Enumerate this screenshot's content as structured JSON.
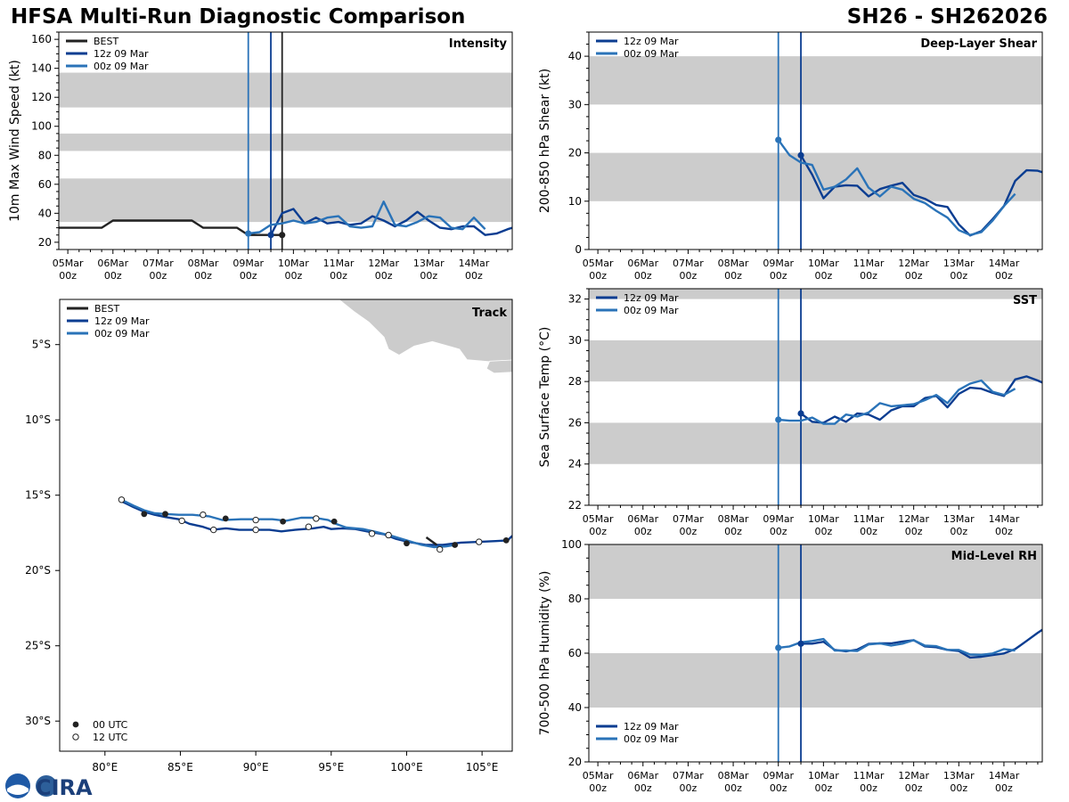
{
  "header": {
    "title_left": "HFSA Multi-Run Diagnostic Comparison",
    "title_right": "SH26 - SH262026"
  },
  "colors": {
    "best": "#222222",
    "run12": "#0b3d91",
    "run00": "#2a73b8",
    "band": "#cccccc",
    "land": "#cccccc"
  },
  "legend": {
    "best": "BEST",
    "run12": "12z 09 Mar",
    "run00": "00z 09 Mar",
    "utc00": "00 UTC",
    "utc12": "12 UTC"
  },
  "time_ticks": [
    "05Mar\n00z",
    "06Mar\n00z",
    "07Mar\n00z",
    "08Mar\n00z",
    "09Mar\n00z",
    "10Mar\n00z",
    "11Mar\n00z",
    "12Mar\n00z",
    "13Mar\n00z",
    "14Mar\n00z"
  ],
  "logo_text": "CIRA",
  "chart_data": [
    {
      "id": "intensity",
      "type": "line",
      "title": "Intensity",
      "ylabel": "10m Max Wind Speed (kt)",
      "xlim_days": [
        -0.2,
        9.85
      ],
      "ylim": [
        15,
        165
      ],
      "yticks": [
        20,
        40,
        60,
        80,
        100,
        120,
        140,
        160
      ],
      "bands": [
        [
          34,
          64
        ],
        [
          83,
          95
        ],
        [
          113,
          137
        ]
      ],
      "vlines": [
        {
          "x": 4.0,
          "color": "run00"
        },
        {
          "x": 4.5,
          "color": "run12"
        },
        {
          "x": 4.75,
          "color": "best"
        }
      ],
      "series": [
        {
          "name": "BEST",
          "color": "best",
          "x": [
            -0.2,
            0.75,
            1.0,
            1.25,
            2.75,
            3.0,
            3.75,
            4.0,
            4.75
          ],
          "y": [
            30,
            30,
            35,
            35,
            35,
            30,
            30,
            25,
            25
          ],
          "end_marker": true
        },
        {
          "name": "12z 09 Mar",
          "color": "run12",
          "x": [
            4.5,
            4.75,
            5.0,
            5.25,
            5.5,
            5.75,
            6.0,
            6.25,
            6.5,
            6.75,
            7.0,
            7.25,
            7.5,
            7.75,
            8.0,
            8.25,
            8.5,
            8.75,
            9.0,
            9.25,
            9.5,
            9.75,
            9.85
          ],
          "y": [
            25,
            40,
            43,
            33,
            37,
            33,
            34,
            32,
            33,
            38,
            35,
            31,
            35,
            41,
            35,
            30,
            29,
            31,
            31,
            25,
            26,
            29,
            30
          ],
          "start_marker": true
        },
        {
          "name": "00z 09 Mar",
          "color": "run00",
          "x": [
            4.0,
            4.25,
            4.5,
            4.75,
            5.0,
            5.25,
            5.5,
            5.75,
            6.0,
            6.25,
            6.5,
            6.75,
            7.0,
            7.25,
            7.5,
            7.75,
            8.0,
            8.25,
            8.5,
            8.75,
            9.0,
            9.25
          ],
          "y": [
            26,
            27,
            32,
            33,
            35,
            33,
            34,
            37,
            38,
            31,
            30,
            31,
            48,
            32,
            31,
            34,
            38,
            37,
            30,
            29,
            37,
            29
          ],
          "start_marker": true
        }
      ]
    },
    {
      "id": "shear",
      "type": "line",
      "title": "Deep-Layer Shear",
      "ylabel": "200-850 hPa Shear (kt)",
      "xlim_days": [
        -0.2,
        9.85
      ],
      "ylim": [
        0,
        45
      ],
      "yticks": [
        0,
        10,
        20,
        30,
        40
      ],
      "bands": [
        [
          10,
          20
        ],
        [
          30,
          40
        ]
      ],
      "vlines": [
        {
          "x": 4.0,
          "color": "run00"
        },
        {
          "x": 4.5,
          "color": "run12"
        }
      ],
      "series": [
        {
          "name": "12z 09 Mar",
          "color": "run12",
          "x": [
            4.5,
            4.75,
            5.0,
            5.25,
            5.5,
            5.75,
            6.0,
            6.25,
            6.5,
            6.75,
            7.0,
            7.25,
            7.5,
            7.75,
            8.0,
            8.25,
            8.5,
            8.75,
            9.0,
            9.25,
            9.5,
            9.75,
            9.85
          ],
          "y": [
            19.5,
            15.5,
            10.6,
            13.0,
            13.3,
            13.2,
            11.0,
            12.5,
            13.2,
            13.8,
            11.3,
            10.5,
            9.2,
            8.8,
            5.2,
            2.9,
            3.8,
            6.3,
            9.0,
            14.2,
            16.4,
            16.3,
            16.0
          ],
          "start_marker": true
        },
        {
          "name": "00z 09 Mar",
          "color": "run00",
          "x": [
            4.0,
            4.25,
            4.5,
            4.75,
            5.0,
            5.25,
            5.5,
            5.75,
            6.0,
            6.25,
            6.5,
            6.75,
            7.0,
            7.25,
            7.5,
            7.75,
            8.0,
            8.25,
            8.5,
            8.75,
            9.0,
            9.25
          ],
          "y": [
            22.7,
            19.5,
            18.0,
            17.5,
            12.4,
            13.0,
            14.5,
            16.8,
            12.8,
            11.0,
            13.0,
            12.4,
            10.5,
            9.6,
            8.0,
            6.6,
            4.0,
            3.0,
            3.6,
            6.0,
            9.0,
            11.5
          ],
          "start_marker": true
        }
      ]
    },
    {
      "id": "sst",
      "type": "line",
      "title": "SST",
      "ylabel": "Sea Surface Temp (°C)",
      "xlim_days": [
        -0.2,
        9.85
      ],
      "ylim": [
        22,
        32.5
      ],
      "yticks": [
        22,
        24,
        26,
        28,
        30,
        32
      ],
      "bands": [
        [
          24,
          26
        ],
        [
          28,
          30
        ],
        [
          32,
          32.5
        ]
      ],
      "vlines": [
        {
          "x": 4.0,
          "color": "run00"
        },
        {
          "x": 4.5,
          "color": "run12"
        }
      ],
      "series": [
        {
          "name": "12z 09 Mar",
          "color": "run12",
          "x": [
            4.5,
            4.75,
            5.0,
            5.25,
            5.5,
            5.75,
            6.0,
            6.25,
            6.5,
            6.75,
            7.0,
            7.25,
            7.5,
            7.75,
            8.0,
            8.25,
            8.5,
            8.75,
            9.0,
            9.25,
            9.5,
            9.75,
            9.85
          ],
          "y": [
            26.45,
            26.05,
            26.0,
            26.3,
            26.05,
            26.45,
            26.4,
            26.15,
            26.6,
            26.8,
            26.8,
            27.2,
            27.3,
            26.75,
            27.4,
            27.7,
            27.65,
            27.45,
            27.3,
            28.1,
            28.25,
            28.05,
            27.95
          ],
          "start_marker": true
        },
        {
          "name": "00z 09 Mar",
          "color": "run00",
          "x": [
            4.0,
            4.25,
            4.5,
            4.75,
            5.0,
            5.25,
            5.5,
            5.75,
            6.0,
            6.25,
            6.5,
            6.75,
            7.0,
            7.25,
            7.5,
            7.75,
            8.0,
            8.25,
            8.5,
            8.75,
            9.0,
            9.25
          ],
          "y": [
            26.15,
            26.1,
            26.1,
            26.25,
            25.95,
            25.95,
            26.4,
            26.3,
            26.5,
            26.95,
            26.8,
            26.85,
            26.9,
            27.1,
            27.35,
            26.95,
            27.6,
            27.9,
            28.05,
            27.5,
            27.35,
            27.65
          ],
          "start_marker": true
        }
      ]
    },
    {
      "id": "rh",
      "type": "line",
      "title": "Mid-Level RH",
      "ylabel": "700-500 hPa Humidity (%)",
      "xlim_days": [
        -0.2,
        9.85
      ],
      "ylim": [
        20,
        100
      ],
      "yticks": [
        20,
        40,
        60,
        80,
        100
      ],
      "bands": [
        [
          40,
          60
        ],
        [
          80,
          100
        ]
      ],
      "vlines": [
        {
          "x": 4.0,
          "color": "run00"
        },
        {
          "x": 4.5,
          "color": "run12"
        }
      ],
      "legend_pos": "bottom-left",
      "series": [
        {
          "name": "12z 09 Mar",
          "color": "run12",
          "x": [
            4.5,
            4.75,
            5.0,
            5.25,
            5.5,
            5.75,
            6.0,
            6.25,
            6.5,
            6.75,
            7.0,
            7.25,
            7.5,
            7.75,
            8.0,
            8.25,
            8.5,
            8.75,
            9.0,
            9.25,
            9.5,
            9.75,
            9.85
          ],
          "y": [
            63.5,
            63.5,
            64.2,
            61.2,
            60.7,
            61.3,
            63.4,
            63.6,
            63.6,
            64.3,
            64.8,
            62.5,
            62.2,
            61.2,
            60.8,
            58.4,
            58.7,
            59.3,
            59.9,
            61.5,
            64.5,
            67.5,
            68.6
          ],
          "start_marker": true
        },
        {
          "name": "00z 09 Mar",
          "color": "run00",
          "x": [
            4.0,
            4.25,
            4.5,
            4.75,
            5.0,
            5.25,
            5.5,
            5.75,
            6.0,
            6.25,
            6.5,
            6.75,
            7.0,
            7.25,
            7.5,
            7.75,
            8.0,
            8.25,
            8.5,
            8.75,
            9.0,
            9.25
          ],
          "y": [
            62.0,
            62.5,
            64.0,
            64.5,
            65.2,
            61.0,
            61.0,
            60.8,
            63.2,
            63.6,
            62.8,
            63.5,
            64.8,
            62.8,
            62.6,
            61.2,
            61.2,
            59.5,
            59.4,
            59.9,
            61.5,
            61.0
          ],
          "start_marker": true
        }
      ]
    },
    {
      "id": "track",
      "type": "track",
      "title": "Track",
      "xlim": [
        77,
        107
      ],
      "ylim": [
        -32,
        -2
      ],
      "xticks": [
        80,
        85,
        90,
        95,
        100,
        105
      ],
      "xtick_labels": [
        "80°E",
        "85°E",
        "90°E",
        "95°E",
        "100°E",
        "105°E"
      ],
      "yticks": [
        -5,
        -10,
        -15,
        -20,
        -25,
        -30
      ],
      "ytick_labels": [
        "5°S",
        "10°S",
        "15°S",
        "20°S",
        "25°S",
        "30°S"
      ],
      "best": {
        "lon": [
          101.3,
          102.0
        ],
        "lat": [
          -17.8,
          -18.3
        ]
      },
      "run12": {
        "lon": [
          107.0,
          106.7,
          105.9,
          104.8,
          103.6,
          102.4,
          101.3,
          100.1,
          99.3,
          98.5,
          97.6,
          96.6,
          95.8,
          95.0,
          94.5,
          93.8,
          92.6,
          91.7,
          90.9,
          89.9,
          88.9,
          88.0,
          87.1,
          86.5,
          85.6,
          84.9,
          84.0,
          83.3,
          82.6,
          81.9,
          81.5,
          81.1
        ],
        "lat": [
          -17.7,
          -18.0,
          -18.05,
          -18.1,
          -18.15,
          -18.3,
          -18.3,
          -18.1,
          -17.9,
          -17.6,
          -17.45,
          -17.25,
          -17.2,
          -17.25,
          -17.1,
          -17.2,
          -17.3,
          -17.4,
          -17.3,
          -17.3,
          -17.3,
          -17.2,
          -17.3,
          -17.1,
          -16.9,
          -16.6,
          -16.45,
          -16.3,
          -16.1,
          -15.8,
          -15.6,
          -15.4
        ],
        "dots00": [
          [
            106.6,
            -18.0
          ],
          [
            100.0,
            -18.2
          ],
          [
            95.2,
            -16.75
          ],
          [
            91.8,
            -16.75
          ],
          [
            88.0,
            -16.55
          ],
          [
            84.0,
            -16.25
          ],
          [
            82.6,
            -16.25
          ]
        ],
        "dots12": [
          [
            104.8,
            -18.1
          ],
          [
            102.2,
            -18.6
          ],
          [
            97.7,
            -17.55
          ],
          [
            93.5,
            -17.1
          ],
          [
            90.0,
            -17.3
          ],
          [
            87.2,
            -17.3
          ]
        ]
      },
      "run00": {
        "lon": [
          103.2,
          102.6,
          101.8,
          101.0,
          100.0,
          99.0,
          98.0,
          97.1,
          96.0,
          95.3,
          94.8,
          93.9,
          93.0,
          92.0,
          91.1,
          90.2,
          89.0,
          87.8,
          86.9,
          85.8,
          84.9,
          84.0,
          83.3,
          82.6,
          81.9,
          81.1
        ],
        "lat": [
          -18.3,
          -18.4,
          -18.45,
          -18.3,
          -18.0,
          -17.7,
          -17.45,
          -17.25,
          -17.15,
          -16.9,
          -16.65,
          -16.5,
          -16.5,
          -16.7,
          -16.6,
          -16.6,
          -16.6,
          -16.65,
          -16.4,
          -16.3,
          -16.3,
          -16.25,
          -16.2,
          -16.0,
          -15.7,
          -15.3
        ],
        "dots00": [
          [
            103.2,
            -18.3
          ]
        ],
        "dots12": [
          [
            98.8,
            -17.65
          ],
          [
            94.0,
            -16.55
          ],
          [
            90.0,
            -16.65
          ],
          [
            86.5,
            -16.3
          ],
          [
            85.1,
            -16.7
          ],
          [
            81.1,
            -15.3
          ]
        ]
      }
    }
  ]
}
